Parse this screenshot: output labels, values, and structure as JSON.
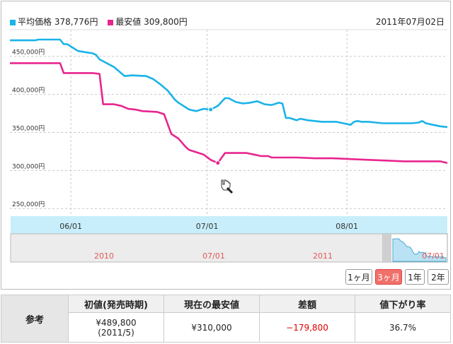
{
  "header": {
    "legend": [
      {
        "label": "平均価格 378,776円",
        "color": "#1ab3e8"
      },
      {
        "label": "最安値 309,800円",
        "color": "#e8258f"
      }
    ],
    "date": "2011年07月02日"
  },
  "chart_data": {
    "type": "line",
    "title": "",
    "xlabel": "",
    "ylabel": "",
    "ylim": [
      240000,
      485000
    ],
    "y_ticks": [
      250000,
      300000,
      350000,
      400000,
      450000
    ],
    "y_tick_labels": [
      "250,000円",
      "300,000円",
      "350,000円",
      "400,000円",
      "450,000円"
    ],
    "x_range": [
      0,
      122
    ],
    "x_ticks": [
      {
        "x": 17,
        "label": "06/01"
      },
      {
        "x": 55,
        "label": "07/01"
      },
      {
        "x": 94,
        "label": "08/01"
      }
    ],
    "series": [
      {
        "name": "平均価格",
        "color": "#1ab3e8",
        "x": [
          0,
          7,
          8,
          14,
          15,
          16,
          19,
          23,
          24,
          25,
          29,
          31,
          32,
          34,
          38,
          40,
          42,
          44,
          46,
          47,
          49,
          50,
          52,
          54,
          56,
          58,
          60,
          61,
          63,
          65,
          67,
          69,
          71,
          73,
          75,
          76,
          77,
          78,
          80,
          81,
          83,
          85,
          87,
          89,
          91,
          93,
          95,
          96,
          97,
          98,
          100,
          102,
          104,
          106,
          108,
          110,
          112,
          114,
          115,
          116,
          118,
          120,
          122
        ],
        "values": [
          471000,
          471000,
          472000,
          472000,
          466000,
          466000,
          457000,
          454000,
          452000,
          446000,
          436000,
          428000,
          424000,
          425000,
          424000,
          420000,
          413000,
          405000,
          393000,
          389000,
          383000,
          380000,
          378000,
          381000,
          380000,
          385000,
          395000,
          395000,
          390000,
          388000,
          389000,
          391000,
          387000,
          386000,
          389000,
          388000,
          369000,
          369000,
          366000,
          368000,
          366000,
          365000,
          364000,
          364000,
          364000,
          362000,
          360000,
          364000,
          365000,
          364000,
          364000,
          363000,
          362000,
          362000,
          362000,
          362000,
          362000,
          363000,
          365000,
          362000,
          360000,
          358000,
          357000
        ]
      },
      {
        "name": "最安値",
        "color": "#e8258f",
        "x": [
          0,
          14,
          15,
          23,
          25,
          26,
          29,
          31,
          33,
          35,
          37,
          41,
          43,
          45,
          47,
          49,
          50,
          52,
          54,
          56,
          58,
          60,
          63,
          66,
          68,
          70,
          72,
          73,
          75,
          80,
          85,
          90,
          95,
          100,
          105,
          110,
          115,
          118,
          120,
          121,
          122
        ],
        "values": [
          441000,
          441000,
          428000,
          428000,
          427000,
          387000,
          387000,
          385000,
          381000,
          380000,
          378000,
          377000,
          374000,
          348000,
          342000,
          331000,
          327000,
          324000,
          321000,
          314000,
          309800,
          323000,
          323000,
          323000,
          321000,
          319000,
          319000,
          317000,
          317000,
          317000,
          316000,
          316000,
          315000,
          314000,
          313000,
          312000,
          312000,
          312000,
          312000,
          311000,
          309800
        ]
      }
    ]
  },
  "navigator": {
    "year_labels": [
      {
        "label": "2010"
      },
      {
        "label": "07/01"
      },
      {
        "label": "2011"
      },
      {
        "label": "07/01"
      }
    ]
  },
  "range_buttons": {
    "b1": "1ヶ月",
    "b2": "3ヶ月",
    "b3": "1年",
    "b4": "2年"
  },
  "reference_table": {
    "row_header": "参考",
    "headers": [
      "初値(発売時期)",
      "現在の最安値",
      "差額",
      "値下がり率"
    ],
    "initial_price": "¥489,800",
    "initial_date": "(2011/5)",
    "current_lowest": "¥310,000",
    "difference": "−179,800",
    "drop_rate": "36.7%"
  }
}
